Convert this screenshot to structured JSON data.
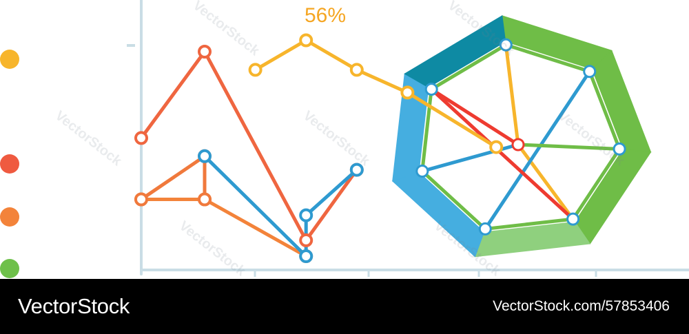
{
  "chart_data": {
    "type": "line",
    "annotations": [
      "56%"
    ],
    "legend": {
      "placement": "left",
      "colors": [
        "#f7b52c",
        "#ef5a40",
        "#f3833a",
        "#6ec04a"
      ]
    },
    "y_ticks": [
      "",
      "",
      "",
      ""
    ],
    "x_ticks": [
      "",
      "",
      "",
      "",
      ""
    ],
    "grid": false,
    "series": [
      {
        "color": "#ef6640",
        "points": [
          [
            0.0,
            0.52
          ],
          [
            1.0,
            0.9
          ],
          [
            2.6,
            0.07
          ],
          [
            3.4,
            0.38
          ]
        ]
      },
      {
        "color": "#f3833a",
        "points": [
          [
            0.0,
            0.25
          ],
          [
            1.0,
            0.25
          ],
          [
            2.6,
            0.0
          ]
        ]
      },
      {
        "color": "#f0793c",
        "points": [
          [
            0.0,
            0.25
          ],
          [
            1.0,
            0.44
          ],
          [
            1.0,
            0.25
          ]
        ]
      },
      {
        "color": "#2e9ad0",
        "points": [
          [
            1.0,
            0.44
          ],
          [
            2.6,
            0.0
          ],
          [
            2.6,
            0.18
          ],
          [
            3.4,
            0.38
          ]
        ]
      },
      {
        "color": "#f7b52c",
        "points": [
          [
            1.8,
            0.82
          ],
          [
            2.6,
            0.95
          ],
          [
            3.4,
            0.82
          ],
          [
            4.2,
            0.72
          ],
          [
            5.6,
            0.48
          ]
        ]
      }
    ],
    "radar": {
      "type": "radar",
      "axes": 7,
      "ring_colors": [
        "#0e8aa3",
        "#6fbd47",
        "#8fd07e",
        "#45aee0"
      ],
      "polygon_values": [
        1,
        1,
        1,
        1,
        1,
        1,
        1
      ],
      "inner_lines": [
        {
          "color": "#f7b52c",
          "from": "center",
          "to": 0
        },
        {
          "color": "#f7b52c",
          "from": "center",
          "to": 3
        },
        {
          "color": "#2e9ad0",
          "from": "center",
          "to": 5
        },
        {
          "color": "#2e9ad0",
          "from": 1,
          "to": 4
        },
        {
          "color": "#ee3b30",
          "from": "center",
          "to": 6
        },
        {
          "color": "#ee3b30",
          "from": 3,
          "to": 6
        },
        {
          "color": "#6fbd47",
          "from": "center",
          "to": 2
        }
      ]
    }
  },
  "footer": {
    "brand": "VectorStock",
    "image_id": "VectorStock.com/57853406"
  },
  "watermark": "VectorStock"
}
